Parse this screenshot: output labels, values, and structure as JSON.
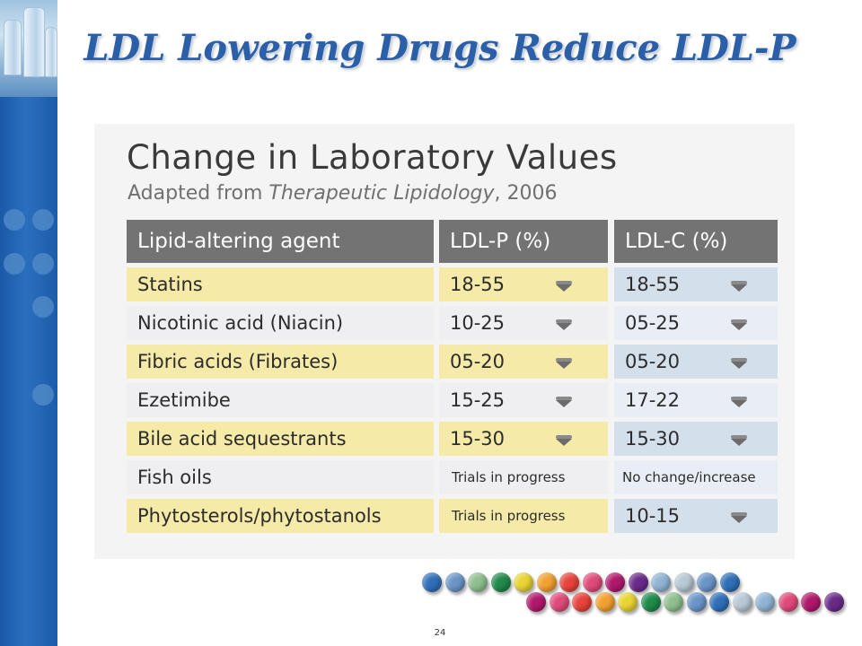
{
  "slide": {
    "title": "LDL Lowering Drugs Reduce LDL-P",
    "page_number": "24"
  },
  "table": {
    "heading": "Change in Laboratory Values",
    "subtitle_prefix": "Adapted from ",
    "subtitle_italic": "Therapeutic Lipidology",
    "subtitle_suffix": ", 2006",
    "columns": [
      "Lipid-altering agent",
      "LDL-P (%)",
      "LDL-C (%)"
    ],
    "rows": [
      {
        "agent": "Statins",
        "ldlp": "18-55",
        "ldlp_down": true,
        "ldlc": "18-55",
        "ldlc_down": true
      },
      {
        "agent": "Nicotinic acid (Niacin)",
        "ldlp": "10-25",
        "ldlp_down": true,
        "ldlc": "05-25",
        "ldlc_down": true
      },
      {
        "agent": "Fibric acids (Fibrates)",
        "ldlp": "05-20",
        "ldlp_down": true,
        "ldlc": "05-20",
        "ldlc_down": true
      },
      {
        "agent": "Ezetimibe",
        "ldlp": "15-25",
        "ldlp_down": true,
        "ldlc": "17-22",
        "ldlc_down": true
      },
      {
        "agent": "Bile acid sequestrants",
        "ldlp": "15-30",
        "ldlp_down": true,
        "ldlc": "15-30",
        "ldlc_down": true
      },
      {
        "agent": "Fish oils",
        "ldlp": "Trials in progress",
        "ldlp_down": false,
        "ldlc": "No change/increase",
        "ldlc_down": false
      },
      {
        "agent": "Phytosterols/phytostanols",
        "ldlp": "Trials in progress",
        "ldlp_down": false,
        "ldlc": "10-15",
        "ldlc_down": true
      }
    ]
  },
  "icons": {
    "trend": "down-arrow-icon"
  },
  "colors": {
    "title": "#2b5fa8",
    "header_bg": "#737373",
    "ldlp_cell": "#f5eaa8",
    "ldlc_cell": "#d4dfec",
    "sidebar": "#1a5aa8"
  },
  "decor": {
    "dot_colors_row1": [
      "#2f6fb8",
      "#6a95c8",
      "#8fbf8f",
      "#1f8a4a",
      "#e9d434",
      "#f2a030",
      "#e8433a",
      "#e04a7a",
      "#b0186c",
      "#6a2a8a",
      "#8fb4d4",
      "#b8c8d4",
      "#6a95c8",
      "#2f6fb8"
    ],
    "dot_colors_row2": [
      "#b0186c",
      "#e04a7a",
      "#e8433a",
      "#f2a030",
      "#e9d434",
      "#1f8a4a",
      "#8fbf8f",
      "#6a95c8",
      "#2f6fb8",
      "#b8c8d4",
      "#8fb4d4",
      "#e04a7a",
      "#b0186c",
      "#6a2a8a"
    ]
  }
}
